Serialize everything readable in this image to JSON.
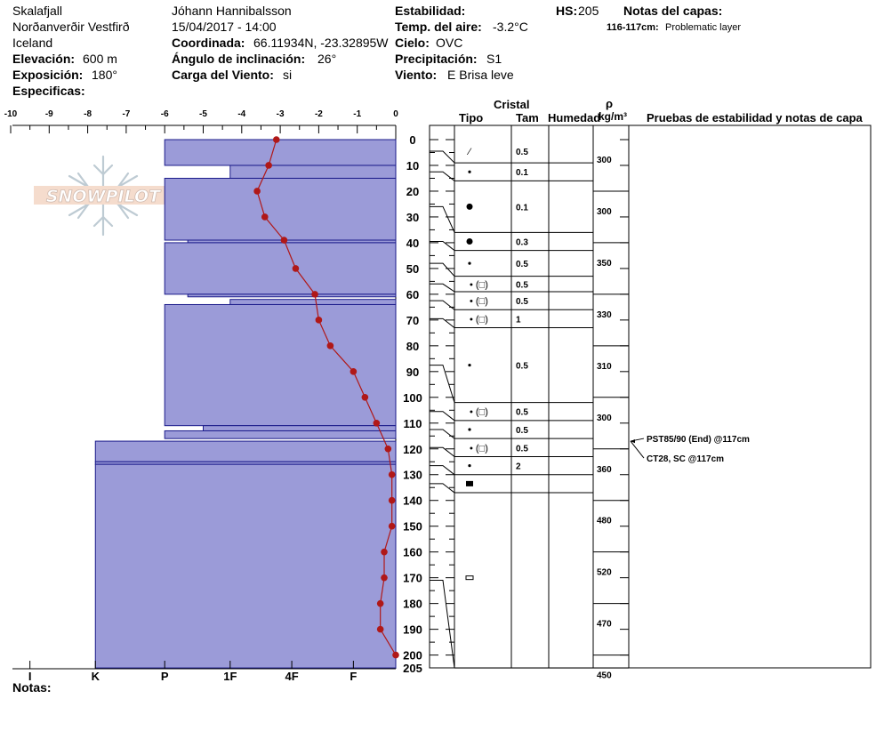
{
  "header": {
    "location": "Skalafjall",
    "region": "Norðanverðir Vestfirð",
    "country": "Iceland",
    "elevation_label": "Elevación:",
    "elevation_value": "600 m",
    "aspect_label": "Exposición:",
    "aspect_value": "180°",
    "specifics_label": "Especificas:",
    "observer": "Jóhann Hannibalsson",
    "datetime": "15/04/2017 - 14:00",
    "coord_label": "Coordinada:",
    "coord_value": "66.11934N, -23.32895W",
    "incline_label": "Ángulo de inclinación:",
    "incline_value": "26°",
    "wind_load_label": "Carga del Viento:",
    "wind_load_value": "si",
    "stability_label": "Estabilidad:",
    "air_temp_label": "Temp. del aire:",
    "air_temp_value": "-3.2°C",
    "sky_label": "Cielo:",
    "sky_value": "OVC",
    "precip_label": "Precipitación:",
    "precip_value": "S1",
    "wind_label": "Viento:",
    "wind_value": "E Brisa leve",
    "hs_label": "HS:",
    "hs_value": "205",
    "layer_notes_label": "Notas del capas:",
    "layer_note_depth": "116-117cm:",
    "layer_note_text": "Problematic layer",
    "notes_label": "Notas:"
  },
  "logo": {
    "text": "SNOWPILOT"
  },
  "columns": {
    "crystal": "Cristal",
    "type": "Tipo",
    "size": "Tam",
    "moisture": "Humedad",
    "rho": "ρ",
    "density_unit": "kg/m³",
    "tests": "Pruebas de estabilidad y notas de capa"
  },
  "chart_data": {
    "type": "snow_profile",
    "temp_axis": {
      "ticks": [
        -10,
        -9,
        -8,
        -7,
        -6,
        -5,
        -4,
        -3,
        -2,
        -1,
        0
      ],
      "range": [
        -10,
        0
      ]
    },
    "depth_axis": {
      "ticks": [
        0,
        10,
        20,
        30,
        40,
        50,
        60,
        70,
        80,
        90,
        100,
        110,
        120,
        130,
        140,
        150,
        160,
        170,
        180,
        190,
        200
      ],
      "bottom_label": "205",
      "range": [
        0,
        205
      ]
    },
    "hardness_axis": {
      "labels": [
        "I",
        "K",
        "P",
        "1F",
        "4F",
        "F"
      ],
      "values": [
        -9.5,
        -7.8,
        -6,
        -4.3,
        -2.7,
        -1.1
      ]
    },
    "hardness_layers": [
      {
        "top": 0,
        "bottom": 10,
        "hardness": -6
      },
      {
        "top": 10,
        "bottom": 15,
        "hardness": -4.3
      },
      {
        "top": 15,
        "bottom": 39,
        "hardness": -6
      },
      {
        "top": 39,
        "bottom": 40,
        "hardness": -5.4
      },
      {
        "top": 40,
        "bottom": 60,
        "hardness": -6
      },
      {
        "top": 60,
        "bottom": 61,
        "hardness": -5.4
      },
      {
        "top": 62,
        "bottom": 64,
        "hardness": -4.3
      },
      {
        "top": 64,
        "bottom": 111,
        "hardness": -6
      },
      {
        "top": 111,
        "bottom": 113,
        "hardness": -5
      },
      {
        "top": 113,
        "bottom": 116,
        "hardness": -6
      },
      {
        "top": 117,
        "bottom": 125,
        "hardness": -7.8
      },
      {
        "top": 125,
        "bottom": 126,
        "hardness": -7.8
      },
      {
        "top": 126,
        "bottom": 205,
        "hardness": -7.8
      }
    ],
    "temperature_profile": [
      {
        "depth": 0,
        "temp": -3.1
      },
      {
        "depth": 10,
        "temp": -3.3
      },
      {
        "depth": 20,
        "temp": -3.6
      },
      {
        "depth": 30,
        "temp": -3.4
      },
      {
        "depth": 39,
        "temp": -2.9
      },
      {
        "depth": 50,
        "temp": -2.6
      },
      {
        "depth": 60,
        "temp": -2.1
      },
      {
        "depth": 70,
        "temp": -2.0
      },
      {
        "depth": 80,
        "temp": -1.7
      },
      {
        "depth": 90,
        "temp": -1.1
      },
      {
        "depth": 100,
        "temp": -0.8
      },
      {
        "depth": 110,
        "temp": -0.5
      },
      {
        "depth": 120,
        "temp": -0.2
      },
      {
        "depth": 130,
        "temp": -0.1
      },
      {
        "depth": 140,
        "temp": -0.1
      },
      {
        "depth": 150,
        "temp": -0.1
      },
      {
        "depth": 160,
        "temp": -0.3
      },
      {
        "depth": 170,
        "temp": -0.3
      },
      {
        "depth": 180,
        "temp": -0.4
      },
      {
        "depth": 190,
        "temp": -0.4
      },
      {
        "depth": 200,
        "temp": 0
      }
    ],
    "crystal_layers": [
      {
        "top": 0,
        "bottom": 9,
        "grain": "decomposing",
        "size": "0.5"
      },
      {
        "top": 9,
        "bottom": 16,
        "grain": "rounded",
        "size": "0.1"
      },
      {
        "top": 16,
        "bottom": 36,
        "grain": "melt-form",
        "size": "0.1"
      },
      {
        "top": 36,
        "bottom": 43,
        "grain": "melt-form",
        "size": "0.3"
      },
      {
        "top": 43,
        "bottom": 53,
        "grain": "rounded",
        "size": "0.5"
      },
      {
        "top": 53,
        "bottom": 59,
        "grain": "rounded (faceted)",
        "size": "0.5"
      },
      {
        "top": 59,
        "bottom": 66,
        "grain": "rounded (faceted)",
        "size": "0.5"
      },
      {
        "top": 66,
        "bottom": 73,
        "grain": "rounded (faceted)",
        "size": "1"
      },
      {
        "top": 73,
        "bottom": 102,
        "grain": "rounded",
        "size": "0.5"
      },
      {
        "top": 102,
        "bottom": 109,
        "grain": "rounded (faceted)",
        "size": "0.5"
      },
      {
        "top": 109,
        "bottom": 116,
        "grain": "rounded",
        "size": "0.5"
      },
      {
        "top": 116,
        "bottom": 123,
        "grain": "rounded (faceted)",
        "size": "0.5"
      },
      {
        "top": 123,
        "bottom": 130,
        "grain": "rounded",
        "size": "2"
      },
      {
        "top": 130,
        "bottom": 137,
        "grain": "ice-layer",
        "size": ""
      },
      {
        "top": 137,
        "bottom": 205,
        "grain": "crust",
        "size": ""
      }
    ],
    "density_layers": [
      {
        "top": 0,
        "bottom": 20,
        "value": "300"
      },
      {
        "top": 20,
        "bottom": 40,
        "value": "300"
      },
      {
        "top": 40,
        "bottom": 60,
        "value": "350"
      },
      {
        "top": 60,
        "bottom": 80,
        "value": "330"
      },
      {
        "top": 80,
        "bottom": 100,
        "value": "310"
      },
      {
        "top": 100,
        "bottom": 120,
        "value": "300"
      },
      {
        "top": 120,
        "bottom": 140,
        "value": "360"
      },
      {
        "top": 140,
        "bottom": 160,
        "value": "480"
      },
      {
        "top": 160,
        "bottom": 180,
        "value": "520"
      },
      {
        "top": 180,
        "bottom": 200,
        "value": "470"
      },
      {
        "top": 200,
        "bottom": 205,
        "value": "450"
      }
    ],
    "stability_tests": [
      {
        "depth": 117,
        "label": "PST85/90 (End) @117cm"
      },
      {
        "depth": 117,
        "label": "CT28, SC @117cm"
      }
    ]
  }
}
